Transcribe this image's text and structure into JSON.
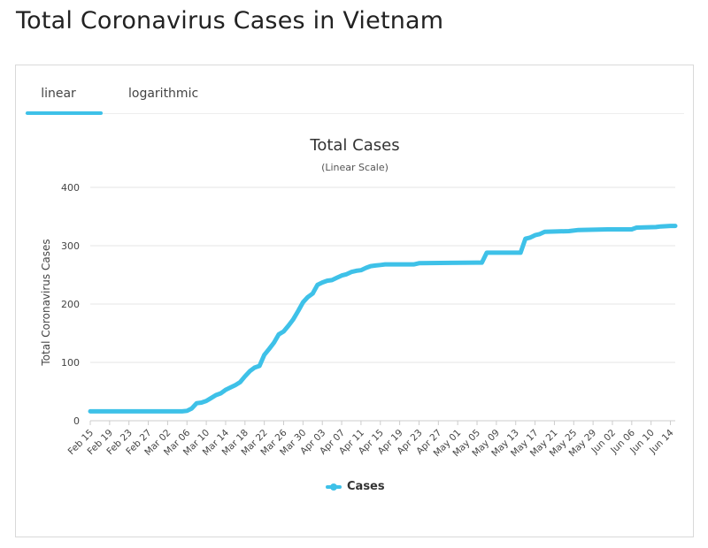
{
  "page": {
    "title": "Total Coronavirus Cases in Vietnam"
  },
  "tabs": [
    {
      "label": "linear",
      "active": true
    },
    {
      "label": "logarithmic",
      "active": false
    }
  ],
  "accent_color": "#3ec1e8",
  "chart_data": {
    "type": "line",
    "title": "Total Cases",
    "subtitle": "(Linear Scale)",
    "xlabel": "",
    "ylabel": "Total Coronavirus Cases",
    "ylim": [
      0,
      400
    ],
    "yticks": [
      0,
      100,
      200,
      300,
      400
    ],
    "grid": true,
    "legend": "bottom",
    "x_tick_labels": [
      "Feb 15",
      "Feb 19",
      "Feb 23",
      "Feb 27",
      "Mar 02",
      "Mar 06",
      "Mar 10",
      "Mar 14",
      "Mar 18",
      "Mar 22",
      "Mar 26",
      "Mar 30",
      "Apr 03",
      "Apr 07",
      "Apr 11",
      "Apr 15",
      "Apr 19",
      "Apr 23",
      "Apr 27",
      "May 01",
      "May 05",
      "May 09",
      "May 13",
      "May 17",
      "May 21",
      "May 25",
      "May 29",
      "Jun 02",
      "Jun 06",
      "Jun 10",
      "Jun 14"
    ],
    "series": [
      {
        "name": "Cases",
        "color": "#3ec1e8",
        "points": [
          [
            "2020-02-15",
            16
          ],
          [
            "2020-03-05",
            16
          ],
          [
            "2020-03-06",
            17
          ],
          [
            "2020-03-07",
            21
          ],
          [
            "2020-03-08",
            30
          ],
          [
            "2020-03-09",
            31
          ],
          [
            "2020-03-10",
            34
          ],
          [
            "2020-03-11",
            39
          ],
          [
            "2020-03-12",
            44
          ],
          [
            "2020-03-13",
            47
          ],
          [
            "2020-03-14",
            53
          ],
          [
            "2020-03-15",
            57
          ],
          [
            "2020-03-16",
            61
          ],
          [
            "2020-03-17",
            66
          ],
          [
            "2020-03-18",
            76
          ],
          [
            "2020-03-19",
            85
          ],
          [
            "2020-03-20",
            91
          ],
          [
            "2020-03-21",
            94
          ],
          [
            "2020-03-22",
            113
          ],
          [
            "2020-03-23",
            123
          ],
          [
            "2020-03-24",
            134
          ],
          [
            "2020-03-25",
            148
          ],
          [
            "2020-03-26",
            153
          ],
          [
            "2020-03-27",
            163
          ],
          [
            "2020-03-28",
            174
          ],
          [
            "2020-03-29",
            188
          ],
          [
            "2020-03-30",
            203
          ],
          [
            "2020-03-31",
            212
          ],
          [
            "2020-04-01",
            218
          ],
          [
            "2020-04-02",
            233
          ],
          [
            "2020-04-03",
            237
          ],
          [
            "2020-04-04",
            240
          ],
          [
            "2020-04-05",
            241
          ],
          [
            "2020-04-06",
            245
          ],
          [
            "2020-04-07",
            249
          ],
          [
            "2020-04-08",
            251
          ],
          [
            "2020-04-09",
            255
          ],
          [
            "2020-04-10",
            257
          ],
          [
            "2020-04-11",
            258
          ],
          [
            "2020-04-12",
            262
          ],
          [
            "2020-04-13",
            265
          ],
          [
            "2020-04-14",
            266
          ],
          [
            "2020-04-15",
            267
          ],
          [
            "2020-04-16",
            268
          ],
          [
            "2020-04-22",
            268
          ],
          [
            "2020-04-23",
            270
          ],
          [
            "2020-05-05",
            271
          ],
          [
            "2020-05-06",
            271
          ],
          [
            "2020-05-07",
            288
          ],
          [
            "2020-05-14",
            288
          ],
          [
            "2020-05-15",
            312
          ],
          [
            "2020-05-16",
            314
          ],
          [
            "2020-05-17",
            318
          ],
          [
            "2020-05-18",
            320
          ],
          [
            "2020-05-19",
            324
          ],
          [
            "2020-05-24",
            325
          ],
          [
            "2020-05-26",
            327
          ],
          [
            "2020-06-01",
            328
          ],
          [
            "2020-06-06",
            328
          ],
          [
            "2020-06-07",
            331
          ],
          [
            "2020-06-11",
            332
          ],
          [
            "2020-06-12",
            333
          ],
          [
            "2020-06-14",
            334
          ],
          [
            "2020-06-15",
            334
          ]
        ]
      }
    ]
  }
}
